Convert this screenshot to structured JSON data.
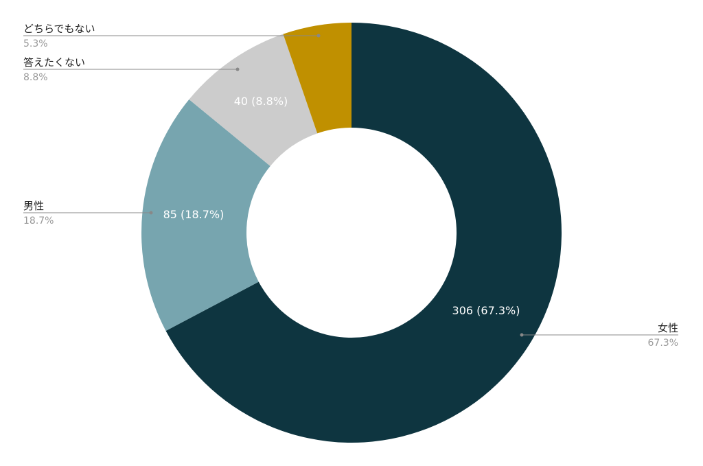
{
  "chart_data": {
    "type": "pie",
    "donut": true,
    "title": "",
    "legend": "none",
    "start": "top",
    "direction": "clockwise",
    "slices": [
      {
        "label": "女性",
        "value": 306,
        "pct_label": "67.3%",
        "data_label": "306 (67.3%)",
        "color": "#0e3540"
      },
      {
        "label": "男性",
        "value": 85,
        "pct_label": "18.7%",
        "data_label": "85 (18.7%)",
        "color": "#77a5af"
      },
      {
        "label": "答えたくない",
        "value": 40,
        "pct_label": "8.8%",
        "data_label": "40 (8.8%)",
        "color": "#cccccc"
      },
      {
        "label": "どちらでもない",
        "value": 24,
        "pct_label": "5.3%",
        "data_label": "",
        "color": "#c09000"
      }
    ],
    "colors": {
      "data_label": "#ffffff",
      "category_text": "#222222",
      "percent_text": "#999999",
      "leader_line": "#888888"
    }
  }
}
